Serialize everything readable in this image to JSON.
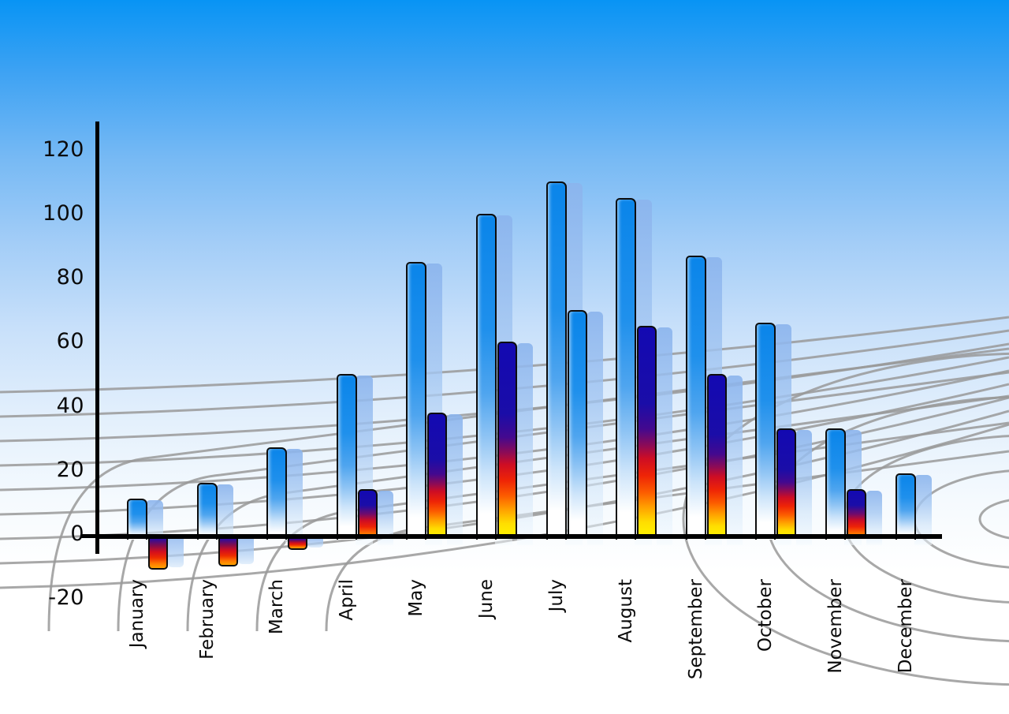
{
  "figure": {
    "description": "3D-style monthly statistics bar chart over sky-blue gradient background with gray perspective mesh grid",
    "background_top_color": "#0894F4",
    "background_bottom_color": "#FFFFFF",
    "grid_color": "#999999",
    "axis_color": "#000000",
    "text_color": "#0b0b0b"
  },
  "chart_data": {
    "type": "bar",
    "title": "",
    "legend": "none",
    "categories": [
      "January",
      "February",
      "March",
      "April",
      "May",
      "June",
      "July",
      "August",
      "September",
      "October",
      "November",
      "December"
    ],
    "series": [
      {
        "name": "primary-blue-bars",
        "color": "#1F90EC",
        "values": [
          11,
          16,
          27,
          50,
          85,
          100,
          110,
          105,
          87,
          66,
          33,
          19
        ]
      },
      {
        "name": "secondary-gradient-bars",
        "color": "navy-red-yellow gradient",
        "values": [
          -11,
          -10,
          -5,
          14,
          38,
          60,
          70,
          65,
          50,
          33,
          14,
          null
        ]
      }
    ],
    "secondary_bar_styles": [
      "multi",
      "multi",
      "multi",
      "multi",
      "multi",
      "multi",
      "blue",
      "multi",
      "multi",
      "multi",
      "multi",
      "none"
    ],
    "yticks": [
      120,
      100,
      80,
      60,
      40,
      20,
      0,
      -20
    ],
    "ylim": [
      -20,
      120
    ],
    "xlabel_rotation_deg": -90,
    "grid": "decorative perspective mesh, not aligned to ticks",
    "bar_colors": {
      "blue_top": "#0A85EA",
      "shadow_copy_blue": "#A9CBF1",
      "multi_navy": "#1309B2",
      "multi_red": "#E81010",
      "multi_orange": "#FF8800",
      "multi_yellow": "#FFF600"
    }
  }
}
